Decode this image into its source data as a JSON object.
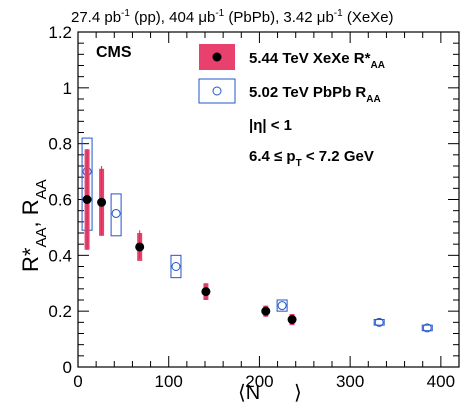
{
  "header": {
    "left": "27.4 pb",
    "left_sup": "-1",
    "left_tail": " (pp), 404 ",
    "mid": "μb",
    "mid_sup": "-1",
    "mid_tail": " (PbPb), 3.42 ",
    "right": "μb",
    "right_sup": "-1",
    "right_tail": " (XeXe)"
  },
  "chart_data": {
    "type": "scatter",
    "experiment_label": "CMS",
    "xlabel_main": "⟨N",
    "ylabel_main": "R*",
    "ylabel_sub1": "AA",
    "ylabel_mid": ", R",
    "ylabel_sub2": "AA",
    "xlim": [
      0,
      420
    ],
    "ylim": [
      0,
      1.2
    ],
    "x_ticks": [
      "0",
      "100",
      "200",
      "300",
      "400"
    ],
    "y_ticks": [
      "0",
      "0.2",
      "0.4",
      "0.6",
      "0.8",
      "1",
      "1.2"
    ],
    "legend_position": "top-right",
    "annotations": [
      {
        "text": "|η| < 1"
      },
      {
        "text": "6.4 ≤ p",
        "sub": "T",
        "tail": " < 7.2 GeV"
      }
    ],
    "series": [
      {
        "name": "5.44 TeV XeXe R*",
        "name_sub": "AA",
        "marker": "filled-circle",
        "color": "#e8416e",
        "points": [
          {
            "x": 10,
            "y": 0.6,
            "err_lo": 0.18,
            "err_hi": 0.18,
            "sys": 0.18
          },
          {
            "x": 26,
            "y": 0.59,
            "err_lo": 0.12,
            "err_hi": 0.13,
            "sys": 0.12
          },
          {
            "x": 68,
            "y": 0.43,
            "err_lo": 0.04,
            "err_hi": 0.06,
            "sys": 0.05
          },
          {
            "x": 141,
            "y": 0.27,
            "err_lo": 0.03,
            "err_hi": 0.03,
            "sys": 0.03
          },
          {
            "x": 207,
            "y": 0.2,
            "err_lo": 0.02,
            "err_hi": 0.02,
            "sys": 0.02
          },
          {
            "x": 236,
            "y": 0.17,
            "err_lo": 0.02,
            "err_hi": 0.02,
            "sys": 0.02
          }
        ]
      },
      {
        "name": "5.02 TeV PbPb R",
        "name_sub": "AA",
        "marker": "open-circle",
        "color": "#2255cc",
        "points": [
          {
            "x": 10,
            "y": 0.7,
            "sys_lo": 0.21,
            "sys_hi": 0.12
          },
          {
            "x": 42,
            "y": 0.55,
            "sys_lo": 0.08,
            "sys_hi": 0.07
          },
          {
            "x": 108,
            "y": 0.36,
            "sys_lo": 0.04,
            "sys_hi": 0.04
          },
          {
            "x": 225,
            "y": 0.22,
            "sys_lo": 0.02,
            "sys_hi": 0.02
          },
          {
            "x": 332,
            "y": 0.16,
            "sys_lo": 0.01,
            "sys_hi": 0.01
          },
          {
            "x": 385,
            "y": 0.14,
            "sys_lo": 0.01,
            "sys_hi": 0.01
          }
        ]
      }
    ]
  }
}
